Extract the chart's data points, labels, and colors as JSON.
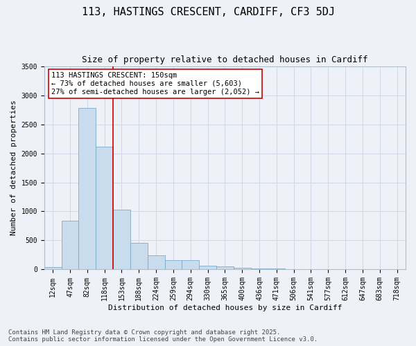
{
  "title_line1": "113, HASTINGS CRESCENT, CARDIFF, CF3 5DJ",
  "title_line2": "Size of property relative to detached houses in Cardiff",
  "xlabel": "Distribution of detached houses by size in Cardiff",
  "ylabel": "Number of detached properties",
  "bar_color": "#c8dced",
  "bar_edge_color": "#7aaac8",
  "grid_color": "#d0d8e8",
  "bg_color": "#eef2f8",
  "categories": [
    "12sqm",
    "47sqm",
    "82sqm",
    "118sqm",
    "153sqm",
    "188sqm",
    "224sqm",
    "259sqm",
    "294sqm",
    "330sqm",
    "365sqm",
    "400sqm",
    "436sqm",
    "471sqm",
    "506sqm",
    "541sqm",
    "577sqm",
    "612sqm",
    "647sqm",
    "683sqm",
    "718sqm"
  ],
  "values": [
    45,
    840,
    2780,
    2110,
    1030,
    460,
    240,
    155,
    155,
    65,
    55,
    28,
    18,
    12,
    5,
    3,
    3,
    2,
    1,
    1,
    1
  ],
  "vline_color": "#cc0000",
  "annotation_text": "113 HASTINGS CRESCENT: 150sqm\n← 73% of detached houses are smaller (5,603)\n27% of semi-detached houses are larger (2,052) →",
  "annotation_box_color": "#ffffff",
  "annotation_box_edge_color": "#cc0000",
  "ylim": [
    0,
    3500
  ],
  "yticks": [
    0,
    500,
    1000,
    1500,
    2000,
    2500,
    3000,
    3500
  ],
  "footer_line1": "Contains HM Land Registry data © Crown copyright and database right 2025.",
  "footer_line2": "Contains public sector information licensed under the Open Government Licence v3.0.",
  "title_fontsize": 11,
  "subtitle_fontsize": 9,
  "axis_label_fontsize": 8,
  "tick_fontsize": 7,
  "annotation_fontsize": 7.5,
  "footer_fontsize": 6.5
}
